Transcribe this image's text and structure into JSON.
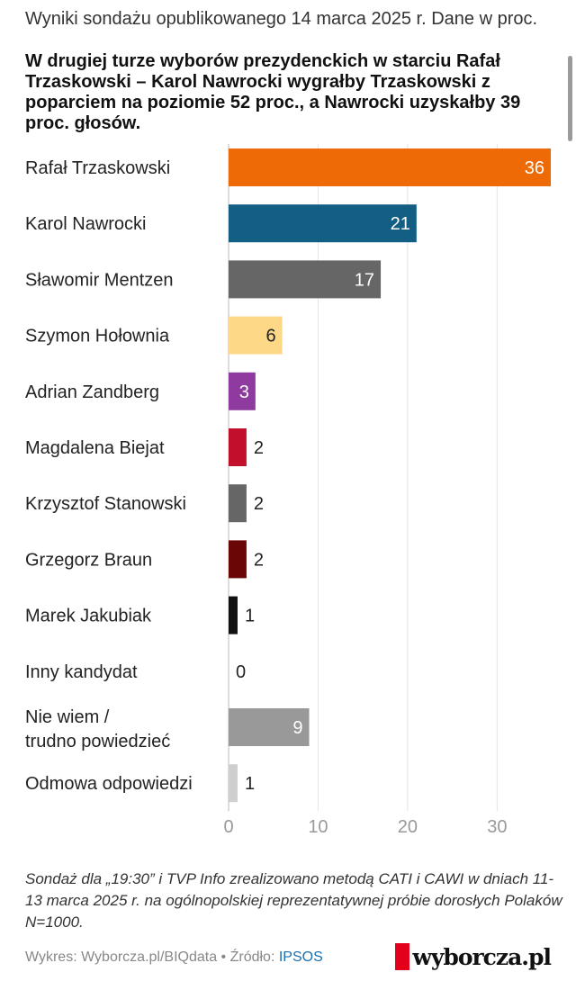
{
  "header": {
    "subtitle": "Wyniki sondażu opublikowanego 14 marca 2025 r. Dane w proc.",
    "title": "W drugiej turze wyborów prezydenckich w starciu Rafał Trzaskowski – Karol Nawrocki wygrałby Trzaskowski z poparciem na poziomie 52 proc., a Nawrocki uzyskałby 39 proc. głosów."
  },
  "chart_data": {
    "type": "bar",
    "orientation": "horizontal",
    "categories": [
      "Rafał Trzaskowski",
      "Karol Nawrocki",
      "Sławomir Mentzen",
      "Szymon Hołownia",
      "Adrian Zandberg",
      "Magdalena Biejat",
      "Krzysztof Stanowski",
      "Grzegorz Braun",
      "Marek Jakubiak",
      "Inny kandydat",
      "Nie wiem / trudno powiedzieć",
      "Odmowa odpowiedzi"
    ],
    "values": [
      36,
      21,
      17,
      6,
      3,
      2,
      2,
      2,
      1,
      0,
      9,
      1
    ],
    "colors": [
      "#ee6a06",
      "#135f84",
      "#666666",
      "#fcd887",
      "#8e3a9e",
      "#c20f2c",
      "#666666",
      "#6b0606",
      "#111111",
      "#cccccc",
      "#999999",
      "#cfcfcf"
    ],
    "label_inside": [
      true,
      true,
      true,
      true,
      true,
      false,
      false,
      false,
      false,
      false,
      true,
      false
    ],
    "label_color": [
      "#ffffff",
      "#ffffff",
      "#ffffff",
      "#222222",
      "#ffffff",
      "#222222",
      "#222222",
      "#222222",
      "#222222",
      "#222222",
      "#ffffff",
      "#222222"
    ],
    "xticks": [
      0,
      10,
      20,
      30
    ],
    "xlim": [
      0,
      36
    ],
    "grid": true
  },
  "note": "Sondaż dla „19:30” i TVP Info zrealizowano metodą CATI i CAWI w dniach 11-13 marca 2025 r. na ogólnopolskiej reprezentatywnej próbie dorosłych Polaków N=1000.",
  "footer": {
    "credit": "Wykres: Wyborcza.pl/BIQdata • Źródło: ",
    "source": "IPSOS",
    "logo_text": "wyborcza.pl"
  }
}
